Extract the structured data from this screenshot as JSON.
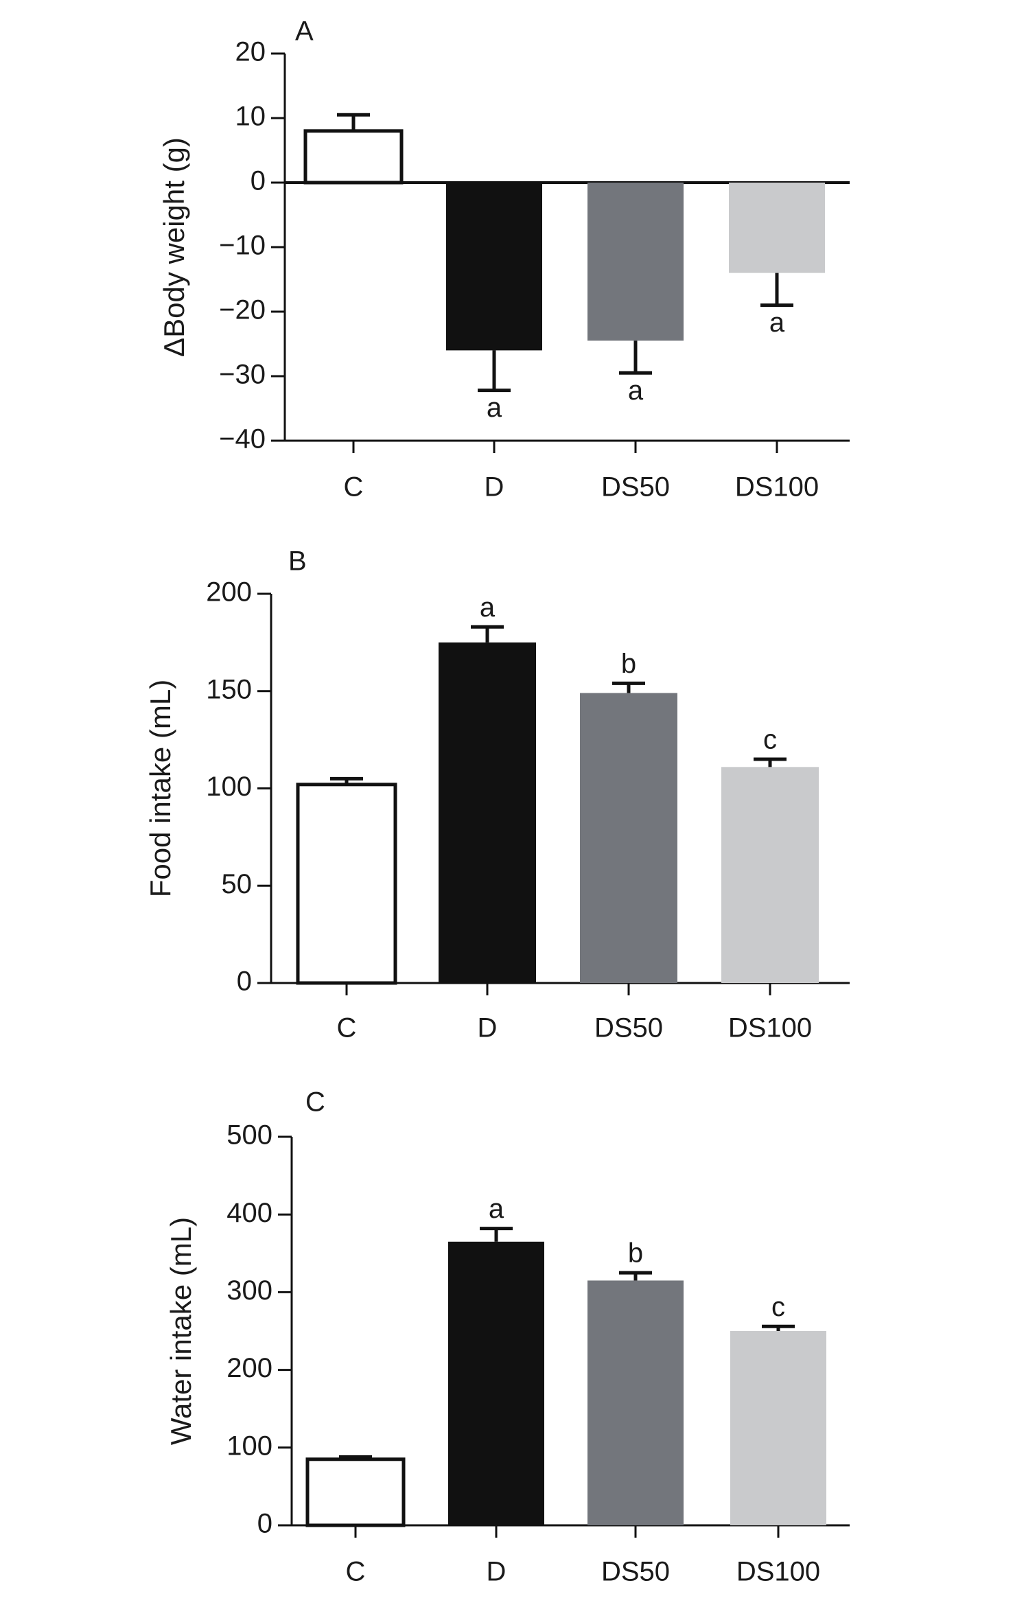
{
  "chart_data": [
    {
      "type": "bar",
      "panel_label": "A",
      "ylabel": "ΔBody weight (g)",
      "ylim": [
        -40,
        20
      ],
      "yticks": [
        20,
        10,
        0,
        -10,
        -20,
        -30,
        -40
      ],
      "ytick_labels": [
        "20",
        "10",
        "0",
        "−10",
        "−20",
        "−30",
        "−40"
      ],
      "categories": [
        "C",
        "D",
        "DS50",
        "DS100"
      ],
      "values": [
        8,
        -26,
        -24.5,
        -14
      ],
      "errors": [
        2.5,
        6.2,
        5,
        5
      ],
      "significance": [
        "",
        "a",
        "a",
        "a"
      ],
      "bar_colors": [
        "#ffffff",
        "#111111",
        "#73767c",
        "#c9cacc"
      ],
      "grid": false,
      "legend": false
    },
    {
      "type": "bar",
      "panel_label": "B",
      "ylabel": "Food intake (mL)",
      "ylim": [
        0,
        200
      ],
      "yticks": [
        200,
        150,
        100,
        50,
        0
      ],
      "ytick_labels": [
        "200",
        "150",
        "100",
        "50",
        "0"
      ],
      "categories": [
        "C",
        "D",
        "DS50",
        "DS100"
      ],
      "values": [
        102,
        175,
        149,
        111
      ],
      "errors": [
        3,
        8,
        5,
        4
      ],
      "significance": [
        "",
        "a",
        "b",
        "c"
      ],
      "bar_colors": [
        "#ffffff",
        "#111111",
        "#73767c",
        "#c9cacc"
      ],
      "grid": false,
      "legend": false
    },
    {
      "type": "bar",
      "panel_label": "C",
      "ylabel": "Water intake (mL)",
      "ylim": [
        0,
        500
      ],
      "yticks": [
        500,
        400,
        300,
        200,
        100,
        0
      ],
      "ytick_labels": [
        "500",
        "400",
        "300",
        "200",
        "100",
        "0"
      ],
      "categories": [
        "C",
        "D",
        "DS50",
        "DS100"
      ],
      "values": [
        85,
        365,
        315,
        250
      ],
      "errors": [
        3,
        17,
        10,
        6
      ],
      "significance": [
        "",
        "a",
        "b",
        "c"
      ],
      "bar_colors": [
        "#ffffff",
        "#111111",
        "#73767c",
        "#c9cacc"
      ],
      "grid": false,
      "legend": false
    }
  ]
}
